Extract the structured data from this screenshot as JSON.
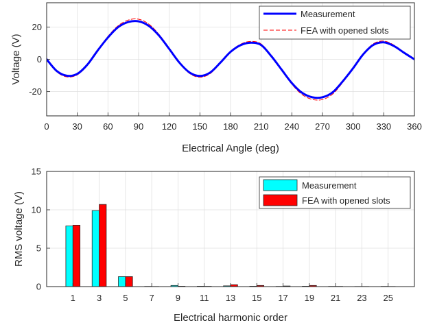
{
  "chart_data": [
    {
      "type": "line",
      "xlabel": "Electrical Angle (deg)",
      "ylabel": "Voltage (V)",
      "xlim": [
        0,
        360
      ],
      "ylim": [
        -35,
        35
      ],
      "xticks": [
        0,
        30,
        60,
        90,
        120,
        150,
        180,
        210,
        240,
        270,
        300,
        330,
        360
      ],
      "yticks": [
        -20,
        0,
        20
      ],
      "grid": true,
      "legend_position": "top-right",
      "series": [
        {
          "name": "Measurement",
          "color": "#0000ff",
          "style": "solid",
          "x": [
            0,
            10,
            20,
            30,
            40,
            50,
            60,
            70,
            80,
            90,
            100,
            110,
            120,
            130,
            140,
            150,
            160,
            170,
            180,
            190,
            200,
            210,
            220,
            230,
            240,
            250,
            260,
            270,
            280,
            290,
            300,
            310,
            320,
            330,
            340,
            350,
            360
          ],
          "y": [
            0,
            -7.3,
            -10.2,
            -9.0,
            -3.2,
            5.5,
            13.5,
            19.9,
            23.1,
            23.5,
            20.7,
            14.7,
            6.4,
            -2.1,
            -8.2,
            -10.3,
            -8.2,
            -2.1,
            4.6,
            8.8,
            10.3,
            8.8,
            1.9,
            -6.4,
            -14.7,
            -20.7,
            -23.5,
            -23.5,
            -20.4,
            -13.5,
            -5.5,
            3.2,
            9.0,
            10.5,
            8.2,
            4.0,
            0
          ]
        },
        {
          "name": "FEA with opened slots",
          "color": "#ff0000",
          "style": "dashed",
          "x": [
            0,
            10,
            20,
            30,
            40,
            50,
            60,
            70,
            80,
            90,
            100,
            110,
            120,
            130,
            140,
            150,
            160,
            170,
            180,
            190,
            200,
            210,
            220,
            230,
            240,
            250,
            260,
            270,
            280,
            290,
            300,
            310,
            320,
            330,
            340,
            350,
            360
          ],
          "y": [
            0,
            -7.8,
            -10.9,
            -9.6,
            -3.6,
            5.7,
            14.2,
            20.8,
            24.3,
            24.8,
            21.8,
            15.4,
            6.9,
            -2.3,
            -8.8,
            -11.1,
            -8.9,
            -2.4,
            4.8,
            9.4,
            11.1,
            9.5,
            2.2,
            -6.8,
            -15.4,
            -21.8,
            -24.8,
            -24.9,
            -21.5,
            -14.2,
            -5.8,
            3.5,
            9.7,
            11.3,
            8.8,
            4.3,
            0
          ]
        }
      ]
    },
    {
      "type": "bar",
      "xlabel": "Electrical harmonic order",
      "ylabel": "RMS voltage (V)",
      "ylim": [
        0,
        15
      ],
      "yticks": [
        0,
        5,
        10,
        15
      ],
      "grid": true,
      "legend_position": "top-right",
      "categories": [
        "1",
        "3",
        "5",
        "7",
        "9",
        "11",
        "13",
        "15",
        "17",
        "19",
        "21",
        "23",
        "25"
      ],
      "series": [
        {
          "name": "Measurement",
          "color": "#00ffff",
          "values": [
            7.9,
            9.9,
            1.3,
            0.03,
            0.15,
            0.05,
            0.1,
            0.05,
            0.03,
            0.05,
            0.03,
            0.02,
            0.03
          ]
        },
        {
          "name": "FEA with opened slots",
          "color": "#ff0000",
          "values": [
            8.0,
            10.7,
            1.3,
            0.02,
            0.05,
            0.04,
            0.25,
            0.15,
            0.08,
            0.15,
            0.03,
            0.02,
            0.02
          ]
        }
      ]
    }
  ]
}
